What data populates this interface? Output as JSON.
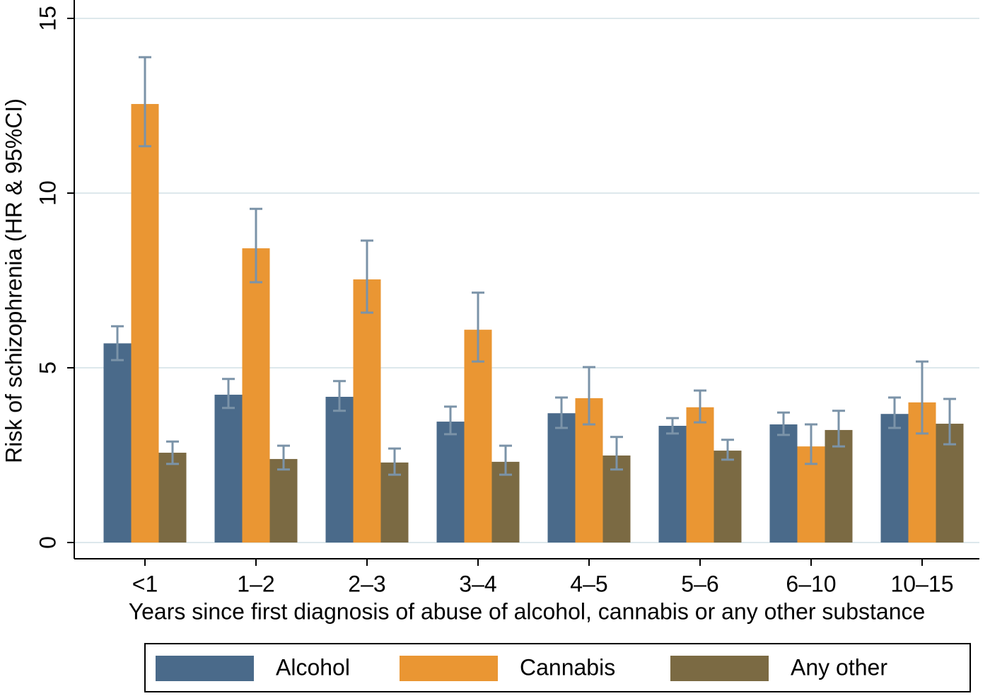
{
  "chart_data": {
    "type": "bar",
    "y_label": "Risk of schizophrenia (HR & 95%CI)",
    "x_label": "Years since first diagnosis of abuse of alcohol, cannabis or any other substance",
    "categories": [
      "<1",
      "1–2",
      "2–3",
      "3–4",
      "4–5",
      "5–6",
      "6–10",
      "10–15"
    ],
    "series": [
      {
        "name": "Alcohol",
        "color": "#4a6a8a",
        "values": [
          5.7,
          4.23,
          4.17,
          3.46,
          3.7,
          3.34,
          3.38,
          3.68
        ],
        "ci_low": [
          5.22,
          3.85,
          3.77,
          3.1,
          3.28,
          3.12,
          3.08,
          3.28
        ],
        "ci_high": [
          6.19,
          4.68,
          4.62,
          3.89,
          4.15,
          3.56,
          3.72,
          4.15
        ]
      },
      {
        "name": "Cannabis",
        "color": "#ea9633",
        "values": [
          12.55,
          8.42,
          7.53,
          6.09,
          4.13,
          3.87,
          2.75,
          4.01
        ],
        "ci_low": [
          11.34,
          7.45,
          6.58,
          5.18,
          3.38,
          3.44,
          2.25,
          3.12
        ],
        "ci_high": [
          13.89,
          9.55,
          8.64,
          7.15,
          5.02,
          4.35,
          3.38,
          5.18
        ]
      },
      {
        "name": "Any other",
        "color": "#7b6a43",
        "values": [
          2.57,
          2.39,
          2.29,
          2.31,
          2.49,
          2.63,
          3.22,
          3.4
        ],
        "ci_low": [
          2.25,
          2.09,
          1.94,
          1.94,
          2.09,
          2.37,
          2.75,
          2.81
        ],
        "ci_high": [
          2.89,
          2.77,
          2.69,
          2.77,
          3.02,
          2.94,
          3.77,
          4.11
        ]
      }
    ],
    "error_bar_color": "#7b93a8",
    "ylim": [
      0,
      15
    ],
    "yticks": [
      0,
      5,
      10,
      15
    ],
    "grid": true,
    "legend": "bottom"
  }
}
